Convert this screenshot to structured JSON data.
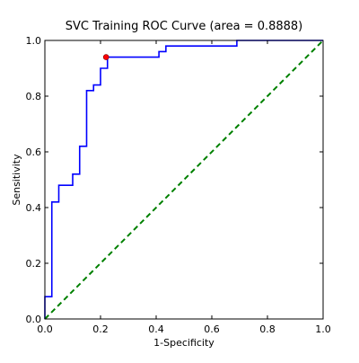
{
  "chart_data": {
    "type": "line",
    "title": "SVC Training ROC Curve (area = 0.8888)",
    "xlabel": "1-Specificity",
    "ylabel": "Sensitivity",
    "xlim": [
      0.0,
      1.0
    ],
    "ylim": [
      0.0,
      1.0
    ],
    "x_ticks": [
      "0.0",
      "0.2",
      "0.4",
      "0.6",
      "0.8",
      "1.0"
    ],
    "y_ticks": [
      "0.0",
      "0.2",
      "0.4",
      "0.6",
      "0.8",
      "1.0"
    ],
    "grid": false,
    "legend": false,
    "series": [
      {
        "style": "step",
        "color": "#0000ff",
        "x": [
          0.0,
          0.0,
          0.025,
          0.025,
          0.05,
          0.05,
          0.1,
          0.1,
          0.125,
          0.125,
          0.15,
          0.15,
          0.175,
          0.175,
          0.2,
          0.2,
          0.225,
          0.225,
          0.3,
          0.3,
          0.325,
          0.325,
          0.35,
          0.35,
          0.375,
          0.375,
          0.4,
          0.4,
          0.41,
          0.41,
          0.435,
          0.435,
          0.69,
          0.69,
          1.0
        ],
        "y": [
          0.0,
          0.08,
          0.08,
          0.42,
          0.42,
          0.48,
          0.48,
          0.52,
          0.52,
          0.62,
          0.62,
          0.82,
          0.82,
          0.84,
          0.84,
          0.9,
          0.9,
          0.94,
          0.94,
          0.94,
          0.94,
          0.94,
          0.94,
          0.94,
          0.94,
          0.94,
          0.94,
          0.94,
          0.94,
          0.96,
          0.96,
          0.98,
          0.98,
          1.0,
          1.0
        ]
      },
      {
        "style": "dashed",
        "color": "#008000",
        "x": [
          0.0,
          1.0
        ],
        "y": [
          0.0,
          1.0
        ]
      }
    ],
    "marker": {
      "x": 0.22,
      "y": 0.94,
      "color": "#ff0000"
    }
  }
}
